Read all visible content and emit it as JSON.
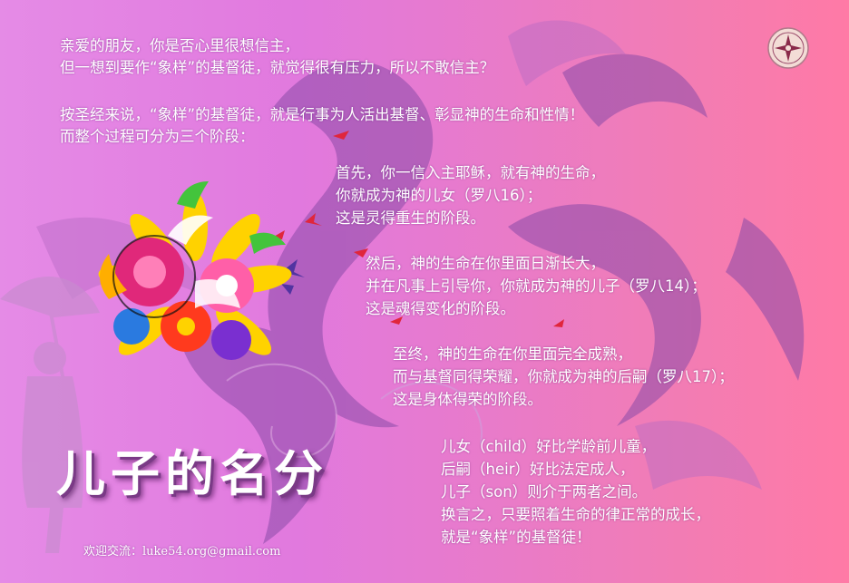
{
  "intro": {
    "line1": "亲爱的朋友，你是否心里很想信主，",
    "line2": "但一想到要作“象样”的基督徒，就觉得很有压力，所以不敢信主？",
    "line3": "按圣经来说，“象样”的基督徒，就是行事为人活出基督、彰显神的生命和性情！",
    "line4": "而整个过程可分为三个阶段："
  },
  "stages": [
    {
      "line1": "首先，你一信入主耶稣，就有神的生命，",
      "line2": "你就成为神的儿女（罗八16）；",
      "line3": "这是灵得重生的阶段。"
    },
    {
      "line1": "然后，神的生命在你里面日渐长大，",
      "line2": "并在凡事上引导你，你就成为神的儿子（罗八14）；",
      "line3": "这是魂得变化的阶段。"
    },
    {
      "line1": "至终，神的生命在你里面完全成熟，",
      "line2": "而与基督同得荣耀，你就成为神的后嗣（罗八17）；",
      "line3": "这是身体得荣的阶段。"
    }
  ],
  "summary": {
    "line1": "儿女（child）好比学龄前儿童，",
    "line2": "后嗣（heir）好比法定成人，",
    "line3": "儿子（son）则介于两者之间。",
    "line4": "换言之，只要照着生命的律正常的成长，",
    "line5": "就是“象样”的基督徒！"
  },
  "title": "儿子的名分",
  "contact": "欢迎交流：luke54.org@gmail.com",
  "icons": {
    "emblem": "ornamental-cross-emblem-icon",
    "bouquet": "flower-bouquet-icon",
    "birds": "flying-birds-icon",
    "child": "child-with-umbrella-silhouette-icon"
  },
  "colors": {
    "background_left": "#e58be6",
    "background_right": "#ff7aa6",
    "text": "#ffffff",
    "title_shadow": "#7a3a86"
  }
}
